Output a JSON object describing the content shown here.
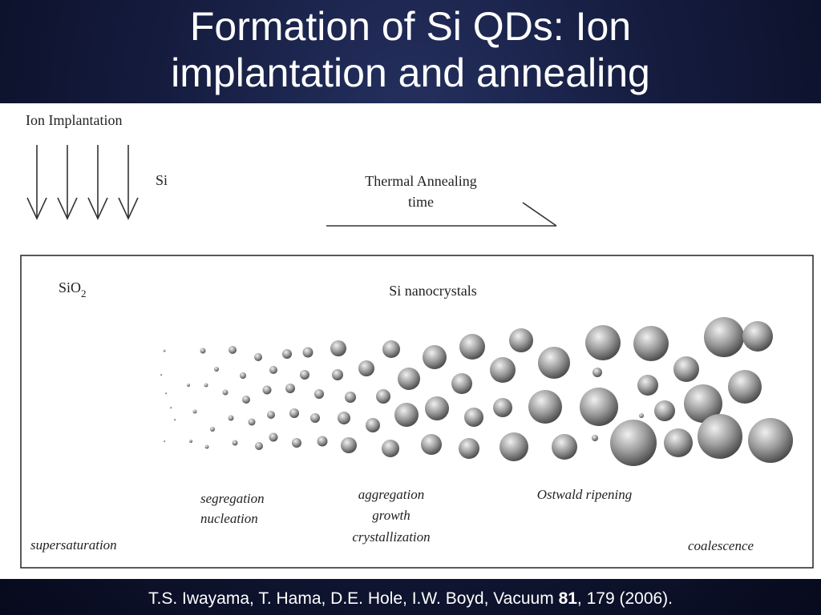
{
  "slide": {
    "title_line1": "Formation of Si QDs: Ion",
    "title_line2": "implantation and annealing"
  },
  "diagram": {
    "ion_implantation_label": "Ion Implantation",
    "ion_species_label": "Si",
    "annealing_label": "Thermal Annealing",
    "time_label": "time",
    "matrix_label_main": "SiO",
    "matrix_label_sub": "2",
    "nanocrystals_label": "Si nanocrystals",
    "stages": {
      "supersaturation": "supersaturation",
      "segregation": "segregation",
      "nucleation": "nucleation",
      "aggregation": "aggregation",
      "growth": "growth",
      "crystallization": "crystallization",
      "ostwald": "Ostwald ripening",
      "coalescence": "coalescence"
    },
    "colors": {
      "sphere_light": "#e6e6e6",
      "sphere_mid": "#9a9a9a",
      "sphere_dark": "#4a4a4a"
    }
  },
  "citation": {
    "authors": "T.S. Iwayama, T. Hama, D.E. Hole, I.W. Boyd, Vacuum ",
    "volume": "81",
    "pages_year": ", 179 (2006)."
  }
}
